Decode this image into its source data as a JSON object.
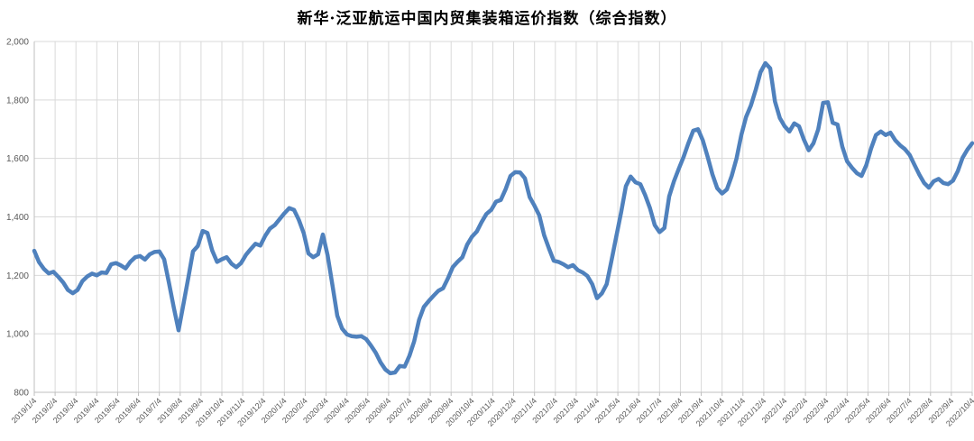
{
  "page": {
    "background_color": "#FFFFFF"
  },
  "header": {
    "title": "新华·泛亚航运中国内贸集装箱运价指数（综合指数）"
  },
  "chart_data": {
    "type": "line",
    "title": "新华·泛亚航运中国内贸集装箱运价指数（综合指数）",
    "xlabel": "",
    "ylabel": "",
    "legend": "none",
    "grid": "both",
    "ylim": [
      800,
      2000
    ],
    "ytick_interval": 200,
    "ytick_labels": [
      "800",
      "1,000",
      "1,200",
      "1,400",
      "1,600",
      "1,800",
      "2,000"
    ],
    "x_tick_label_rotation_deg": 45,
    "data_frequency": "weekly",
    "categories": [
      "2019/1/4",
      "2019/2/4",
      "2019/3/4",
      "2019/4/4",
      "2019/5/4",
      "2019/6/4",
      "2019/7/4",
      "2019/8/4",
      "2019/9/4",
      "2019/10/4",
      "2019/11/4",
      "2019/12/4",
      "2020/1/4",
      "2020/2/4",
      "2020/3/4",
      "2020/4/4",
      "2020/5/4",
      "2020/6/4",
      "2020/7/4",
      "2020/8/4",
      "2020/9/4",
      "2020/10/4",
      "2020/11/4",
      "2020/12/4",
      "2021/1/4",
      "2021/2/4",
      "2021/3/4",
      "2021/4/4",
      "2021/5/4",
      "2021/6/4",
      "2021/7/4",
      "2021/8/4",
      "2021/9/4",
      "2021/10/4",
      "2021/11/4",
      "2021/12/4",
      "2022/1/4",
      "2022/2/4",
      "2022/3/4",
      "2022/4/4",
      "2022/5/4",
      "2022/6/4",
      "2022/7/4",
      "2022/8/4",
      "2022/9/4",
      "2022/10/4"
    ],
    "values": [
      1284,
      1245,
      1222,
      1207,
      1212,
      1195,
      1176,
      1150,
      1139,
      1150,
      1180,
      1196,
      1206,
      1200,
      1210,
      1208,
      1238,
      1242,
      1234,
      1224,
      1247,
      1262,
      1266,
      1254,
      1272,
      1280,
      1282,
      1255,
      1175,
      1090,
      1012,
      1100,
      1190,
      1282,
      1300,
      1352,
      1345,
      1285,
      1246,
      1255,
      1262,
      1240,
      1228,
      1242,
      1270,
      1290,
      1308,
      1302,
      1335,
      1360,
      1372,
      1392,
      1412,
      1430,
      1424,
      1390,
      1345,
      1275,
      1262,
      1272,
      1340,
      1268,
      1165,
      1062,
      1018,
      998,
      992,
      990,
      992,
      982,
      960,
      935,
      902,
      878,
      865,
      868,
      890,
      888,
      925,
      975,
      1048,
      1092,
      1112,
      1130,
      1147,
      1156,
      1190,
      1228,
      1246,
      1262,
      1305,
      1332,
      1350,
      1382,
      1410,
      1424,
      1452,
      1458,
      1495,
      1540,
      1553,
      1552,
      1532,
      1468,
      1438,
      1405,
      1338,
      1292,
      1250,
      1246,
      1238,
      1228,
      1235,
      1218,
      1210,
      1198,
      1170,
      1122,
      1138,
      1170,
      1250,
      1332,
      1415,
      1505,
      1538,
      1518,
      1512,
      1475,
      1430,
      1372,
      1348,
      1362,
      1470,
      1522,
      1565,
      1605,
      1652,
      1695,
      1700,
      1662,
      1605,
      1545,
      1498,
      1480,
      1494,
      1540,
      1600,
      1680,
      1742,
      1782,
      1835,
      1895,
      1926,
      1908,
      1795,
      1738,
      1710,
      1692,
      1720,
      1710,
      1665,
      1628,
      1652,
      1700,
      1790,
      1792,
      1722,
      1716,
      1640,
      1590,
      1568,
      1550,
      1540,
      1578,
      1635,
      1680,
      1692,
      1680,
      1688,
      1662,
      1645,
      1632,
      1612,
      1578,
      1545,
      1516,
      1500,
      1522,
      1530,
      1516,
      1512,
      1524,
      1556,
      1602,
      1630,
      1652
    ],
    "colors": {
      "line": "#4F81BD",
      "gridline": "#D9D9D9",
      "axis_line": "#BFBFBF",
      "tick_label": "#595959",
      "title_text": "#000000",
      "background": "#FFFFFF"
    }
  }
}
